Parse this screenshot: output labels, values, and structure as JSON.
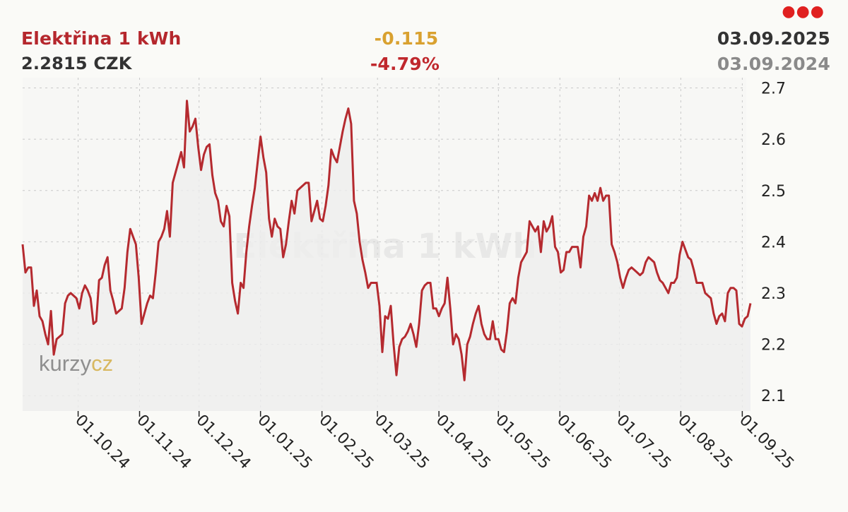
{
  "header": {
    "title": "Elektřina 1 kWh",
    "price": "2.2815 CZK",
    "change_abs": "-0.115",
    "change_pct": "-4.79%",
    "date_end": "03.09.2025",
    "date_start": "03.09.2024",
    "menu_icon": "more-dots-icon"
  },
  "watermark": "Elektřina 1 kWh",
  "logo": {
    "left": "kurzy",
    "right": "cz"
  },
  "colors": {
    "line": "#b52a2f",
    "title": "#b5272d",
    "change_abs": "#d9a130",
    "change_pct": "#c0282d",
    "grid": "#c8c8c8",
    "background": "#fafaf7",
    "plot_fill": "#f0f0f0"
  },
  "chart_data": {
    "type": "line",
    "title": "Elektřina 1 kWh",
    "x_start": "03.09.2024",
    "x_end": "03.09.2025",
    "x_ticks": [
      "01.10.24",
      "01.11.24",
      "01.12.24",
      "01.01.25",
      "01.02.25",
      "01.03.25",
      "01.04.25",
      "01.05.25",
      "01.06.25",
      "01.07.25",
      "01.08.25",
      "01.09.25"
    ],
    "y_ticks": [
      "2.1",
      "2.2",
      "2.3",
      "2.4",
      "2.5",
      "2.6",
      "2.7"
    ],
    "ylim": [
      2.07,
      2.72
    ],
    "y_axis_side": "right",
    "grid": true,
    "series": [
      {
        "values": [
          2.395,
          2.34,
          2.35,
          2.35,
          2.275,
          2.305,
          2.255,
          2.245,
          2.22,
          2.2,
          2.265,
          2.18,
          2.21,
          2.215,
          2.22,
          2.28,
          2.295,
          2.3,
          2.295,
          2.29,
          2.27,
          2.3,
          2.315,
          2.305,
          2.29,
          2.24,
          2.245,
          2.325,
          2.33,
          2.355,
          2.37,
          2.305,
          2.285,
          2.26,
          2.265,
          2.27,
          2.31,
          2.38,
          2.425,
          2.41,
          2.395,
          2.33,
          2.24,
          2.26,
          2.28,
          2.295,
          2.29,
          2.34,
          2.4,
          2.41,
          2.425,
          2.46,
          2.41,
          2.515,
          2.535,
          2.555,
          2.575,
          2.545,
          2.675,
          2.615,
          2.625,
          2.64,
          2.585,
          2.54,
          2.57,
          2.585,
          2.59,
          2.53,
          2.495,
          2.48,
          2.44,
          2.43,
          2.47,
          2.45,
          2.32,
          2.285,
          2.26,
          2.32,
          2.31,
          2.38,
          2.43,
          2.47,
          2.505,
          2.555,
          2.605,
          2.565,
          2.535,
          2.445,
          2.41,
          2.445,
          2.43,
          2.425,
          2.37,
          2.395,
          2.44,
          2.48,
          2.455,
          2.5,
          2.505,
          2.51,
          2.515,
          2.515,
          2.44,
          2.46,
          2.48,
          2.445,
          2.44,
          2.47,
          2.51,
          2.58,
          2.565,
          2.555,
          2.585,
          2.615,
          2.64,
          2.66,
          2.63,
          2.48,
          2.455,
          2.4,
          2.365,
          2.34,
          2.31,
          2.32,
          2.32,
          2.32,
          2.275,
          2.185,
          2.255,
          2.25,
          2.275,
          2.2,
          2.14,
          2.195,
          2.21,
          2.215,
          2.225,
          2.24,
          2.22,
          2.195,
          2.24,
          2.305,
          2.315,
          2.32,
          2.32,
          2.27,
          2.27,
          2.255,
          2.27,
          2.28,
          2.33,
          2.27,
          2.2,
          2.22,
          2.21,
          2.18,
          2.13,
          2.2,
          2.215,
          2.24,
          2.26,
          2.275,
          2.24,
          2.22,
          2.21,
          2.21,
          2.245,
          2.21,
          2.21,
          2.19,
          2.185,
          2.225,
          2.28,
          2.29,
          2.28,
          2.33,
          2.36,
          2.37,
          2.38,
          2.44,
          2.43,
          2.42,
          2.43,
          2.38,
          2.44,
          2.42,
          2.43,
          2.45,
          2.39,
          2.38,
          2.34,
          2.345,
          2.38,
          2.38,
          2.39,
          2.39,
          2.39,
          2.35,
          2.41,
          2.43,
          2.49,
          2.48,
          2.495,
          2.48,
          2.505,
          2.48,
          2.49,
          2.49,
          2.395,
          2.38,
          2.36,
          2.33,
          2.31,
          2.33,
          2.345,
          2.35,
          2.345,
          2.34,
          2.335,
          2.34,
          2.36,
          2.37,
          2.365,
          2.36,
          2.34,
          2.325,
          2.32,
          2.31,
          2.3,
          2.32,
          2.32,
          2.33,
          2.375,
          2.4,
          2.385,
          2.37,
          2.365,
          2.345,
          2.32,
          2.32,
          2.32,
          2.3,
          2.295,
          2.29,
          2.26,
          2.24,
          2.255,
          2.26,
          2.245,
          2.3,
          2.31,
          2.31,
          2.305,
          2.24,
          2.235,
          2.25,
          2.255,
          2.28
        ]
      }
    ]
  }
}
